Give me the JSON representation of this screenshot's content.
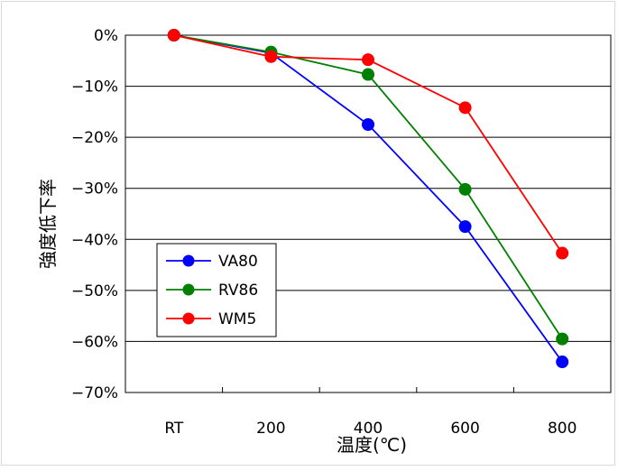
{
  "chart_data": {
    "type": "line",
    "categories": [
      "RT",
      "200",
      "400",
      "600",
      "800"
    ],
    "y_ticks": [
      "0%",
      "−10%",
      "−20%",
      "−30%",
      "−40%",
      "−50%",
      "−60%",
      "−70%"
    ],
    "ylim": [
      -70,
      0
    ],
    "xlabel": "温度(℃)",
    "ylabel": "強度低下率",
    "grid": true,
    "legend_position": "lower-left",
    "series": [
      {
        "name": "VA80",
        "color": "#0000ff",
        "values": [
          0,
          -3.5,
          -17.5,
          -37.5,
          -64.0
        ]
      },
      {
        "name": "RV86",
        "color": "#008000",
        "values": [
          0,
          -3.3,
          -7.7,
          -30.2,
          -59.5
        ]
      },
      {
        "name": "WM5",
        "color": "#ff0000",
        "values": [
          0,
          -4.2,
          -4.8,
          -14.2,
          -42.7
        ]
      }
    ]
  }
}
